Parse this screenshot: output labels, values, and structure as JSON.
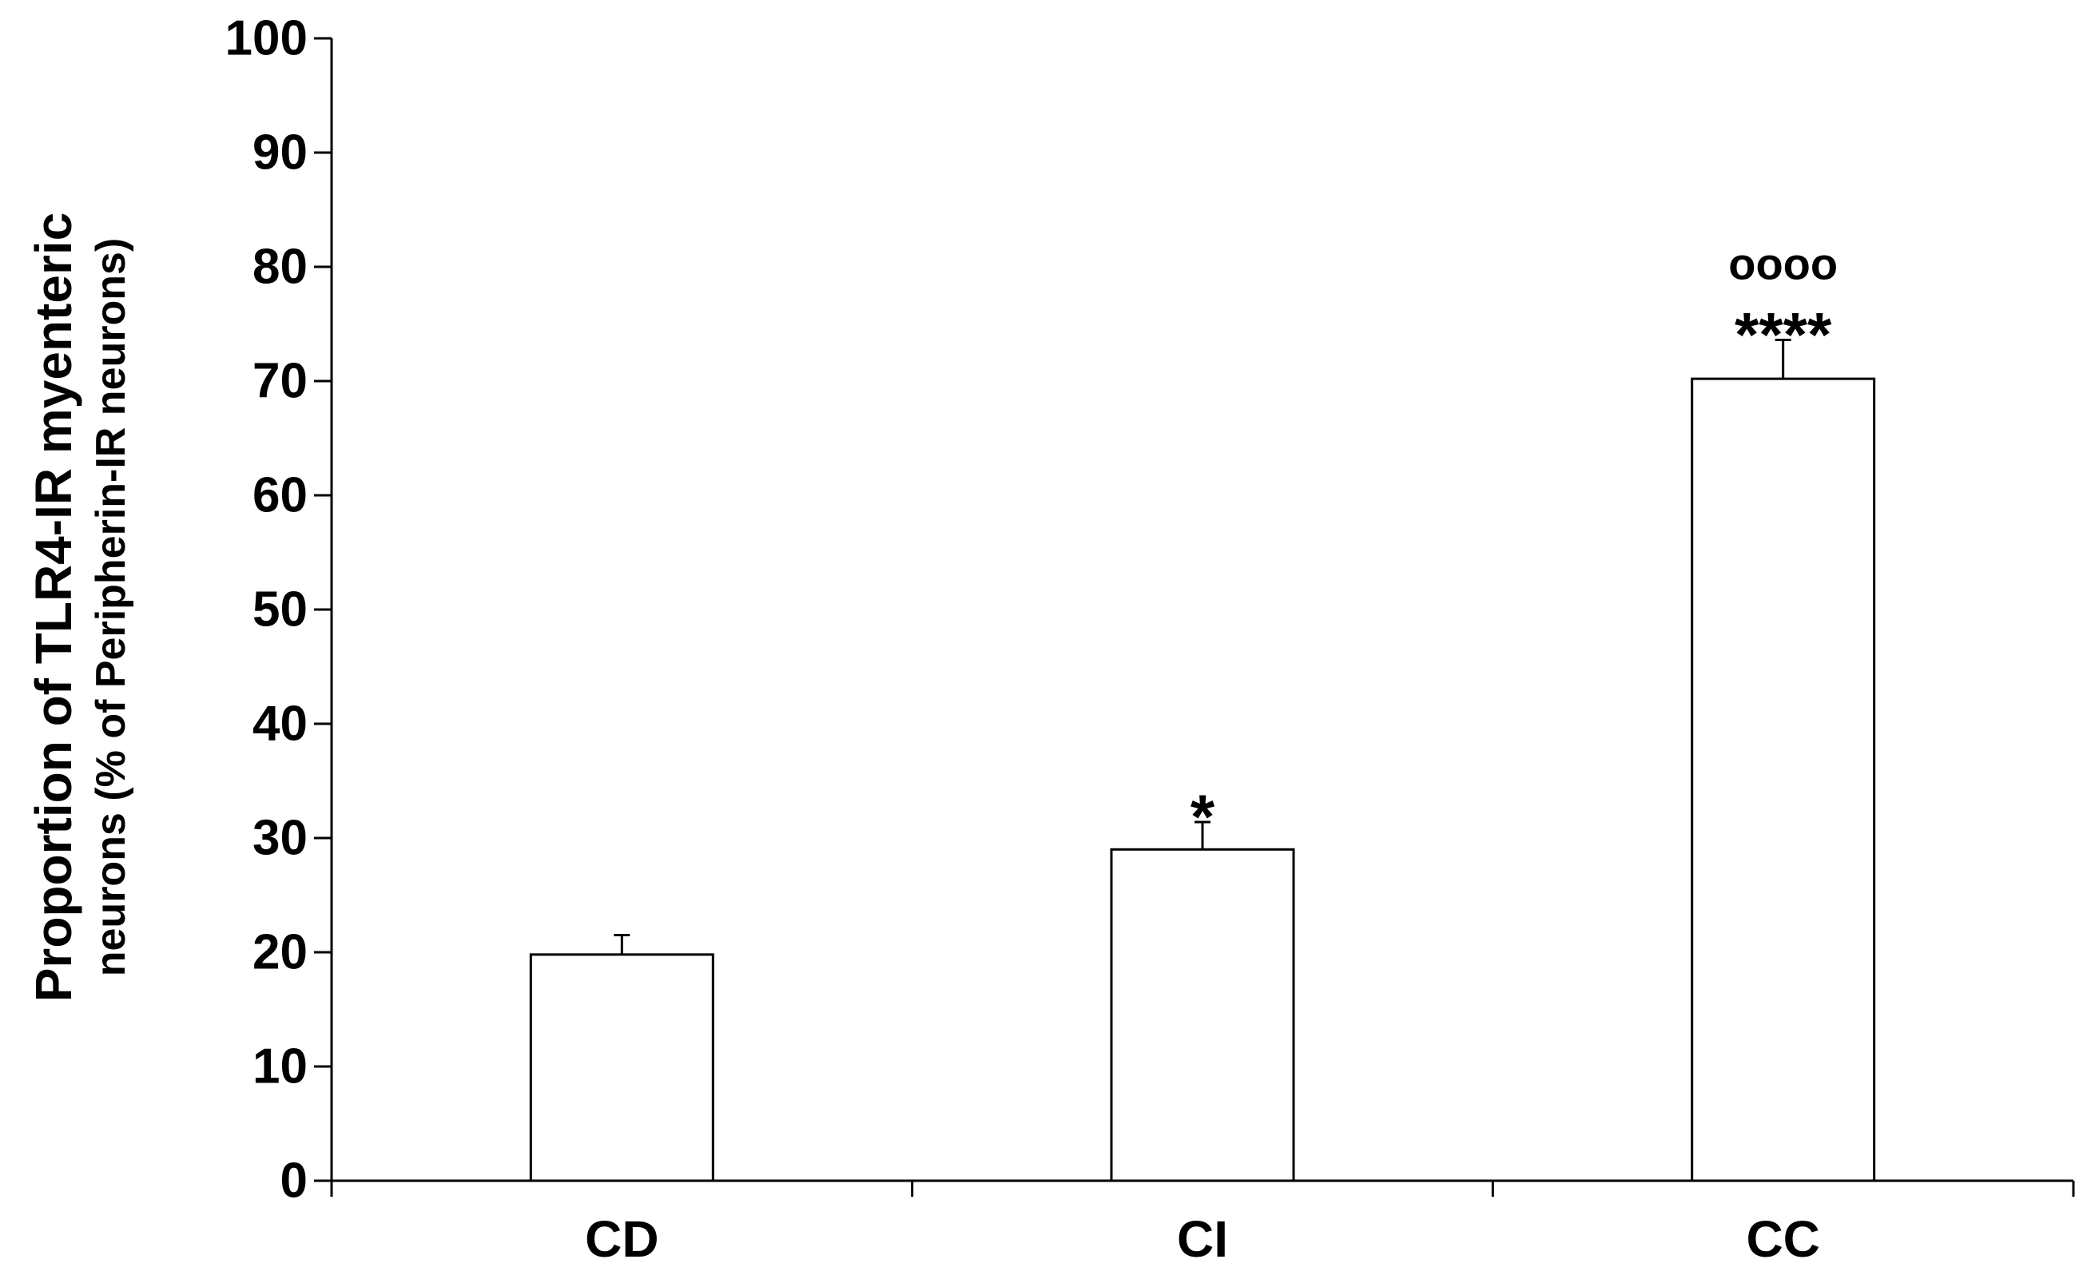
{
  "chart_data": {
    "type": "bar",
    "categories": [
      "CD",
      "CI",
      "CC"
    ],
    "values": [
      19.8,
      29.0,
      70.2
    ],
    "errors": [
      1.7,
      2.4,
      3.4
    ],
    "annotations": [
      {
        "category": "CD",
        "lines": []
      },
      {
        "category": "CI",
        "lines": [
          "*"
        ]
      },
      {
        "category": "CC",
        "lines": [
          "oooo",
          "****"
        ]
      }
    ],
    "ylabel_line1": "Proportion of TLR4-IR myenteric",
    "ylabel_line2": "neurons (% of Peripherin-IR neurons)",
    "ylim": [
      0,
      100
    ],
    "yticks": [
      0,
      10,
      20,
      30,
      40,
      50,
      60,
      70,
      80,
      90,
      100
    ],
    "bar_fill": "#ffffff",
    "bar_stroke": "#000000",
    "grid": false,
    "legend": "none"
  }
}
